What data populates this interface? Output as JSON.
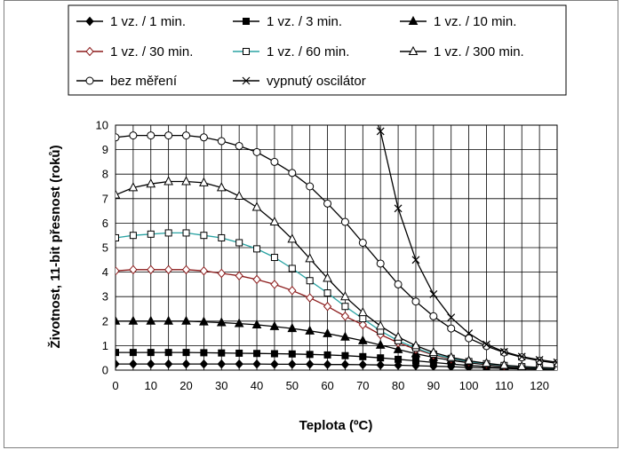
{
  "chart_data": {
    "type": "line",
    "xlabel": "Teplota (ºC)",
    "ylabel": "Životnost, 11-bit přesnost (roků)",
    "xlim": [
      0,
      125
    ],
    "ylim": [
      0,
      10
    ],
    "x_ticks": [
      0,
      10,
      20,
      30,
      40,
      50,
      60,
      70,
      80,
      90,
      100,
      110,
      120
    ],
    "y_ticks": [
      0,
      1,
      2,
      3,
      4,
      5,
      6,
      7,
      8,
      9,
      10
    ],
    "grid": true,
    "legend_placement": "top",
    "series": [
      {
        "name": "1 vz. / 1 min.",
        "marker": "diamond",
        "marker_fill": "filled",
        "color": "#000000",
        "x": [
          0,
          5,
          10,
          15,
          20,
          25,
          30,
          35,
          40,
          45,
          50,
          55,
          60,
          65,
          70,
          75,
          80,
          85,
          90,
          95,
          100,
          105,
          110,
          115,
          120,
          125
        ],
        "y": [
          0.25,
          0.25,
          0.25,
          0.25,
          0.25,
          0.25,
          0.25,
          0.25,
          0.25,
          0.24,
          0.24,
          0.24,
          0.23,
          0.23,
          0.22,
          0.21,
          0.2,
          0.18,
          0.16,
          0.14,
          0.11,
          0.09,
          0.07,
          0.05,
          0.04,
          0.03
        ]
      },
      {
        "name": "1 vz. / 3 min.",
        "marker": "square",
        "marker_fill": "filled",
        "color": "#000000",
        "x": [
          0,
          5,
          10,
          15,
          20,
          25,
          30,
          35,
          40,
          45,
          50,
          55,
          60,
          65,
          70,
          75,
          80,
          85,
          90,
          95,
          100,
          105,
          110,
          115,
          120,
          125
        ],
        "y": [
          0.72,
          0.72,
          0.72,
          0.72,
          0.72,
          0.71,
          0.7,
          0.69,
          0.68,
          0.67,
          0.66,
          0.64,
          0.62,
          0.59,
          0.55,
          0.5,
          0.44,
          0.38,
          0.31,
          0.25,
          0.19,
          0.15,
          0.11,
          0.08,
          0.06,
          0.04
        ]
      },
      {
        "name": "1 vz. / 10 min.",
        "marker": "triangle",
        "marker_fill": "filled",
        "color": "#000000",
        "x": [
          0,
          5,
          10,
          15,
          20,
          25,
          30,
          35,
          40,
          45,
          50,
          55,
          60,
          65,
          70,
          75,
          80,
          85,
          90,
          95,
          100,
          105,
          110,
          115,
          120,
          125
        ],
        "y": [
          2.0,
          2.0,
          2.0,
          2.0,
          2.0,
          1.97,
          1.94,
          1.9,
          1.85,
          1.78,
          1.7,
          1.6,
          1.49,
          1.35,
          1.2,
          1.02,
          0.84,
          0.67,
          0.52,
          0.4,
          0.3,
          0.22,
          0.16,
          0.12,
          0.09,
          0.06
        ]
      },
      {
        "name": "1 vz. / 30 min.",
        "marker": "diamond",
        "marker_fill": "open",
        "color": "#8b1a1a",
        "x": [
          0,
          5,
          10,
          15,
          20,
          25,
          30,
          35,
          40,
          45,
          50,
          55,
          60,
          65,
          70,
          75,
          80,
          85,
          90,
          95,
          100,
          105,
          110,
          115,
          120,
          125
        ],
        "y": [
          4.05,
          4.1,
          4.1,
          4.1,
          4.1,
          4.05,
          3.95,
          3.85,
          3.7,
          3.5,
          3.25,
          2.95,
          2.6,
          2.2,
          1.85,
          1.45,
          1.12,
          0.85,
          0.62,
          0.46,
          0.34,
          0.25,
          0.18,
          0.13,
          0.1,
          0.07
        ]
      },
      {
        "name": "1 vz. / 60 min.",
        "marker": "square",
        "marker_fill": "open",
        "color": "#2aa3a3",
        "x": [
          0,
          5,
          10,
          15,
          20,
          25,
          30,
          35,
          40,
          45,
          50,
          55,
          60,
          65,
          70,
          75,
          80,
          85,
          90,
          95,
          100,
          105,
          110,
          115,
          120,
          125
        ],
        "y": [
          5.4,
          5.5,
          5.55,
          5.6,
          5.6,
          5.5,
          5.4,
          5.2,
          4.95,
          4.6,
          4.15,
          3.65,
          3.15,
          2.6,
          2.1,
          1.6,
          1.2,
          0.9,
          0.65,
          0.48,
          0.35,
          0.26,
          0.19,
          0.14,
          0.1,
          0.07
        ]
      },
      {
        "name": "1 vz. / 300 min.",
        "marker": "triangle",
        "marker_fill": "open",
        "color": "#000000",
        "x": [
          0,
          5,
          10,
          15,
          20,
          25,
          30,
          35,
          40,
          45,
          50,
          55,
          60,
          65,
          70,
          75,
          80,
          85,
          90,
          95,
          100,
          105,
          110,
          115,
          120,
          125
        ],
        "y": [
          7.15,
          7.45,
          7.6,
          7.7,
          7.7,
          7.65,
          7.45,
          7.1,
          6.65,
          6.05,
          5.35,
          4.55,
          3.75,
          3.0,
          2.35,
          1.8,
          1.35,
          1.0,
          0.72,
          0.52,
          0.38,
          0.28,
          0.2,
          0.15,
          0.11,
          0.08
        ]
      },
      {
        "name": "bez měření",
        "marker": "circle",
        "marker_fill": "open",
        "color": "#000000",
        "x": [
          0,
          5,
          10,
          15,
          20,
          25,
          30,
          35,
          40,
          45,
          50,
          55,
          60,
          65,
          70,
          75,
          80,
          85,
          90,
          95,
          100,
          105,
          110,
          115,
          120,
          125
        ],
        "y": [
          9.5,
          9.58,
          9.58,
          9.58,
          9.58,
          9.5,
          9.35,
          9.15,
          8.9,
          8.5,
          8.05,
          7.5,
          6.8,
          6.05,
          5.2,
          4.35,
          3.5,
          2.8,
          2.2,
          1.7,
          1.3,
          0.98,
          0.72,
          0.52,
          0.38,
          0.28
        ]
      },
      {
        "name": "vypnutý oscilátor",
        "marker": "x",
        "marker_fill": "none",
        "color": "#000000",
        "x": [
          73.5,
          75,
          80,
          85,
          90,
          95,
          100,
          105,
          110,
          115,
          120,
          125
        ],
        "y": [
          10.3,
          9.75,
          6.6,
          4.5,
          3.1,
          2.15,
          1.5,
          1.05,
          0.75,
          0.55,
          0.42,
          0.32
        ],
        "marker_x": [
          75,
          80,
          85,
          90,
          95,
          100,
          105,
          110,
          115,
          120,
          125
        ]
      }
    ]
  }
}
